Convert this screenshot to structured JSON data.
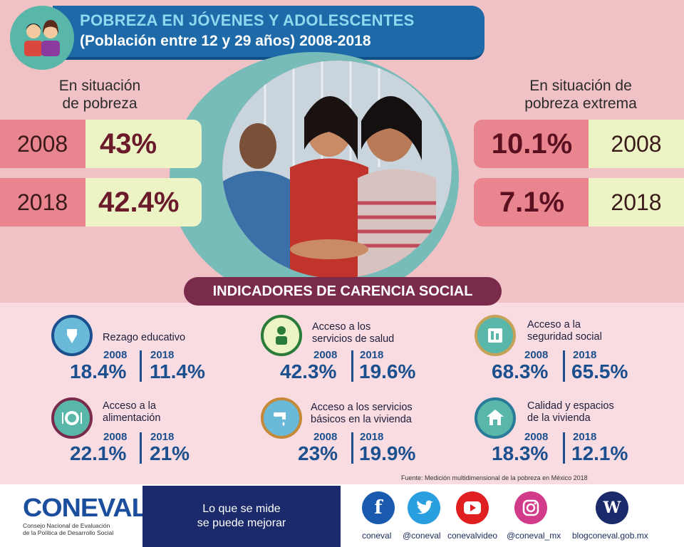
{
  "header": {
    "title_line1": "POBREZA EN JÓVENES Y ADOLESCENTES",
    "title_line2": "(Población entre 12 y 29 años) 2008-2018"
  },
  "left": {
    "title_line1": "En situación",
    "title_line2": "de pobreza"
  },
  "right": {
    "title_line1": "En situación de",
    "title_line2": "pobreza extrema"
  },
  "indicators_title": "INDICADORES DE CARENCIA SOCIAL",
  "indicators": [
    {
      "label_line1": "Rezago educativo",
      "label_line2": "",
      "y1": "2008",
      "v1": "18.4%",
      "y2": "2018",
      "v2": "11.4%"
    },
    {
      "label_line1": "Acceso a los",
      "label_line2": "servicios de salud",
      "y1": "2008",
      "v1": "42.3%",
      "y2": "2018",
      "v2": "19.6%"
    },
    {
      "label_line1": "Acceso a la",
      "label_line2": "seguridad social",
      "y1": "2008",
      "v1": "68.3%",
      "y2": "2018",
      "v2": "65.5%"
    },
    {
      "label_line1": "Acceso a la",
      "label_line2": "alimentación",
      "y1": "2008",
      "v1": "22.1%",
      "y2": "2018",
      "v2": "21%"
    },
    {
      "label_line1": "Acceso a los servicios",
      "label_line2": "básicos en la vivienda",
      "y1": "2008",
      "v1": "23%",
      "y2": "2018",
      "v2": "19.9%"
    },
    {
      "label_line1": "Calidad y espacios",
      "label_line2": "de la vivienda",
      "y1": "2008",
      "v1": "18.3%",
      "y2": "2018",
      "v2": "12.1%"
    }
  ],
  "source": "Fuente: Medición multidimensional de la pobreza en México 2018",
  "footer": {
    "logo": "CONEVAL",
    "logo_sub1": "Consejo Nacional de Evaluación",
    "logo_sub2": "de la Política de Desarrollo Social",
    "slogan1": "Lo que se mide",
    "slogan2": "se puede mejorar",
    "social": [
      "coneval",
      "@coneval",
      "conevalvideo",
      "@coneval_mx",
      "blogconeval.gob.mx"
    ]
  },
  "colors": {
    "blue": "#1e6aa8",
    "maroon": "#7a2a4a",
    "teal": "#58b7a8"
  },
  "chart_data": {
    "type": "table",
    "title": "POBREZA EN JÓVENES Y ADOLESCENTES (Población entre 12 y 29 años) 2008-2018",
    "series": [
      {
        "name": "En situación de pobreza",
        "years": [
          "2008",
          "2018"
        ],
        "values": [
          "43%",
          "42.4%"
        ]
      },
      {
        "name": "En situación de pobreza extrema",
        "years": [
          "2008",
          "2018"
        ],
        "values": [
          "10.1%",
          "7.1%"
        ]
      }
    ]
  }
}
